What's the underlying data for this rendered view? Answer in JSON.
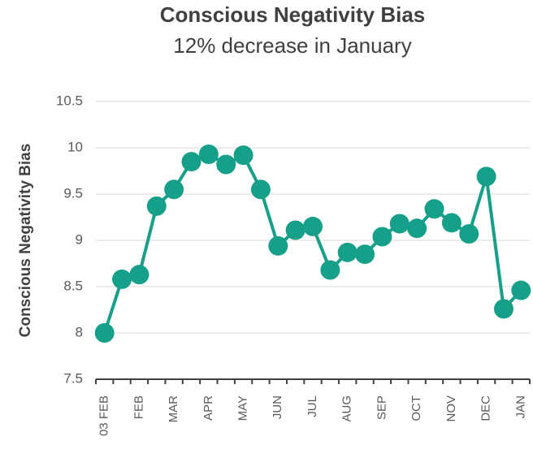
{
  "chart_data": {
    "type": "line",
    "title": "Conscious Negativity Bias",
    "subtitle": "12% decrease in January",
    "y_label": "Conscious Negativity Bias",
    "categories": [
      "03 FEB",
      null,
      "FEB",
      null,
      "MAR",
      null,
      "APR",
      null,
      "MAY",
      null,
      "JUN",
      null,
      "JUL",
      null,
      "AUG",
      null,
      "SEP",
      null,
      "OCT",
      null,
      "NOV",
      null,
      "DEC",
      null,
      "JAN"
    ],
    "series": [
      {
        "name": "Conscious Negativity Bias",
        "color": "#16a08a",
        "values": [
          8.0,
          8.58,
          8.63,
          9.37,
          9.55,
          9.85,
          9.93,
          9.82,
          9.92,
          9.55,
          8.94,
          9.11,
          9.15,
          8.68,
          8.87,
          8.85,
          9.04,
          9.18,
          9.13,
          9.34,
          9.19,
          9.07,
          9.69,
          8.26,
          8.46
        ]
      }
    ],
    "ylim": [
      7.5,
      10.5
    ],
    "yticks": [
      7.5,
      8,
      8.5,
      9,
      9.5,
      10,
      10.5
    ],
    "grid": true
  }
}
